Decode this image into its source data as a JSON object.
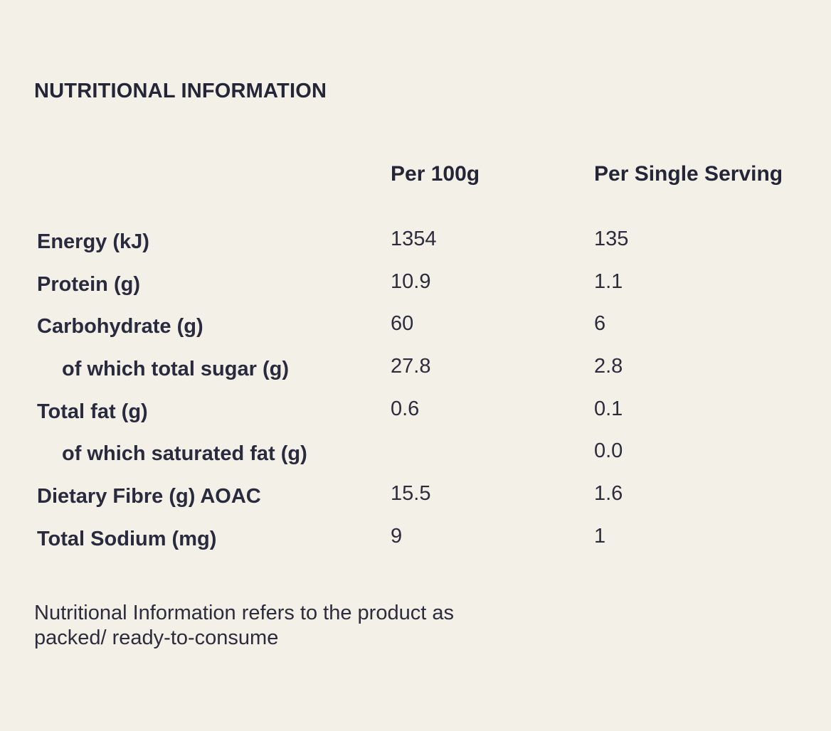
{
  "title": "NUTRITIONAL INFORMATION",
  "columns": {
    "per_100g": "Per 100g",
    "per_serving": "Per Single Serving"
  },
  "rows": [
    {
      "label": "Energy (kJ)",
      "per_100g": "1354",
      "per_serving": "135",
      "sub": false
    },
    {
      "label": "Protein (g)",
      "per_100g": "10.9",
      "per_serving": "1.1",
      "sub": false
    },
    {
      "label": "Carbohydrate (g)",
      "per_100g": "60",
      "per_serving": "6",
      "sub": false
    },
    {
      "label": "of which total sugar (g)",
      "per_100g": "27.8",
      "per_serving": "2.8",
      "sub": true
    },
    {
      "label": "Total fat (g)",
      "per_100g": "0.6",
      "per_serving": "0.1",
      "sub": false
    },
    {
      "label": "of which saturated fat (g)",
      "per_100g": "",
      "per_serving": "0.0",
      "sub": true
    },
    {
      "label": "Dietary Fibre (g) AOAC",
      "per_100g": "15.5",
      "per_serving": "1.6",
      "sub": false
    },
    {
      "label": "Total Sodium (mg)",
      "per_100g": "9",
      "per_serving": "1",
      "sub": false
    }
  ],
  "note": "Nutritional Information refers to the product as packed/ ready-to-consume"
}
